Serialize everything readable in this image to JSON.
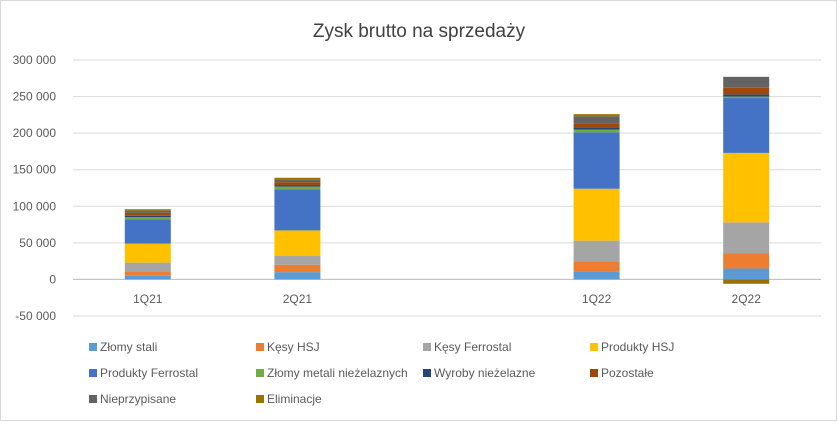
{
  "chart_data": {
    "type": "bar",
    "stacked": true,
    "title": "Zysk brutto na sprzedaży",
    "xlabel": "",
    "ylabel": "",
    "categories": [
      "1Q21",
      "2Q21",
      "",
      "1Q22",
      "2Q22"
    ],
    "ylim": [
      -50000,
      300000
    ],
    "yticks": [
      -50000,
      0,
      50000,
      100000,
      150000,
      200000,
      250000,
      300000
    ],
    "ytick_labels": [
      "-50 000",
      "0",
      "50 000",
      "100 000",
      "150 000",
      "200 000",
      "250 000",
      "300 000"
    ],
    "grid": true,
    "legend_position": "bottom",
    "series": [
      {
        "name": "Złomy stali",
        "color": "#5B9BD5",
        "values": [
          5000,
          10000,
          null,
          11000,
          15000
        ]
      },
      {
        "name": "Kęsy HSJ",
        "color": "#ED7D31",
        "values": [
          6000,
          10000,
          null,
          14000,
          21000
        ]
      },
      {
        "name": "Kęsy Ferrostal",
        "color": "#A5A5A5",
        "values": [
          12000,
          12000,
          null,
          28000,
          42000
        ]
      },
      {
        "name": "Produkty HSJ",
        "color": "#FFC000",
        "values": [
          26000,
          35000,
          null,
          71000,
          95000
        ]
      },
      {
        "name": "Produkty Ferrostal",
        "color": "#4472C4",
        "values": [
          33000,
          56000,
          null,
          77000,
          75000
        ]
      },
      {
        "name": "Złomy metali nieżelaznych",
        "color": "#70AD47",
        "values": [
          3000,
          4000,
          null,
          4000,
          2000
        ]
      },
      {
        "name": "Wyroby nieżelazne",
        "color": "#264478",
        "values": [
          2000,
          2000,
          null,
          3000,
          3000
        ]
      },
      {
        "name": "Pozostałe",
        "color": "#9E480E",
        "values": [
          4000,
          4000,
          null,
          5000,
          9000
        ]
      },
      {
        "name": "Nieprzypisane",
        "color": "#636363",
        "values": [
          3000,
          3000,
          null,
          10000,
          15000
        ]
      },
      {
        "name": "Eliminacje",
        "color": "#997300",
        "values": [
          2000,
          3000,
          null,
          3000,
          -6000
        ]
      }
    ]
  }
}
